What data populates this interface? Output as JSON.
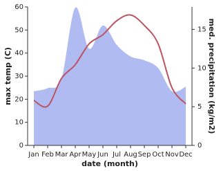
{
  "chart_data": {
    "type": "line",
    "x_label": "date (month)",
    "y_label": "max temp (C)",
    "y2_label": "med. precipitation (kg/m2)",
    "categories": [
      "Jan",
      "Feb",
      "Mar",
      "Apr",
      "May",
      "Jun",
      "Jul",
      "Aug",
      "Sep",
      "Oct",
      "Nov",
      "Dec"
    ],
    "series": [
      {
        "name": "med. precipitation",
        "color": "#b0bbf2",
        "style": "area",
        "axis": "y2",
        "values": [
          7,
          7.4,
          8.6,
          17.8,
          12.5,
          15.5,
          13,
          11.5,
          11,
          10,
          7,
          7.6
        ]
      },
      {
        "name": "max temp",
        "color": "#bb5560",
        "style": "line",
        "axis": "y",
        "values": [
          19.5,
          17,
          29,
          35,
          44,
          48,
          54,
          56.5,
          52,
          44,
          25,
          18
        ]
      }
    ],
    "ylim": [
      0,
      60
    ],
    "yticks": [
      0,
      10,
      20,
      30,
      40,
      50,
      60
    ],
    "y2lim": [
      0,
      17.9
    ],
    "y2ticks": [
      0,
      5,
      10,
      15
    ]
  }
}
